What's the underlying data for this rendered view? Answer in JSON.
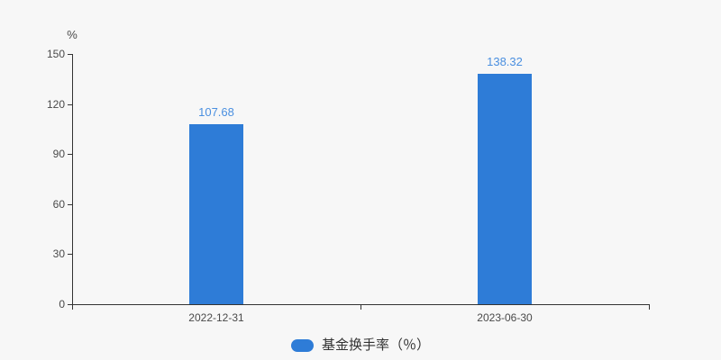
{
  "chart_data": {
    "type": "bar",
    "title": "",
    "unit_label": "%",
    "categories": [
      "2022-12-31",
      "2023-06-30"
    ],
    "series": [
      {
        "name": "基金换手率（％）",
        "values": [
          107.68,
          138.32
        ],
        "color": "#2E7CD7"
      }
    ],
    "value_labels": [
      "107.68",
      "138.32"
    ],
    "y_ticks": [
      0,
      30,
      60,
      90,
      120,
      150
    ],
    "ylim": [
      0,
      150
    ],
    "grid": false,
    "legend_position": "bottom",
    "colors": {
      "bar": "#2E7CD7",
      "value_label": "#4A8FE0",
      "axis_line": "#333333",
      "axis_text": "#4A4A4A",
      "background": "#F7F7F7",
      "legend_text": "#333333"
    }
  },
  "legend": {
    "items": [
      {
        "label": "基金换手率（％）",
        "color": "#2E7CD7"
      }
    ]
  }
}
